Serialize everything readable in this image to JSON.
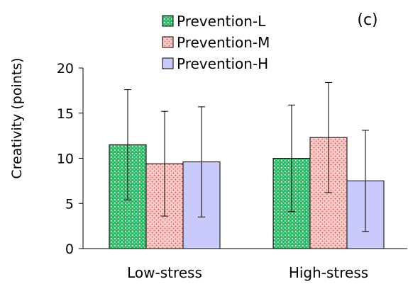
{
  "chart_data": {
    "type": "bar",
    "panel_label": "(c)",
    "title": "",
    "xlabel": "",
    "ylabel": "Creativity (points)",
    "ylim": [
      0,
      20
    ],
    "yticks": [
      0,
      5,
      10,
      15,
      20
    ],
    "grid": false,
    "legend_position": "top-center",
    "categories": [
      "Low-stress",
      "High-stress"
    ],
    "series": [
      {
        "name": "Prevention-L",
        "color": "#28b463",
        "pattern": "dots-green",
        "values": [
          11.5,
          10.0
        ],
        "error": [
          6.1,
          5.9
        ]
      },
      {
        "name": "Prevention-M",
        "color": "#f4a6a6",
        "pattern": "dots-pink",
        "values": [
          9.4,
          12.3
        ],
        "error": [
          5.8,
          6.1
        ]
      },
      {
        "name": "Prevention-H",
        "color": "#c9c9fb",
        "pattern": "solid",
        "values": [
          9.6,
          7.5
        ],
        "error": [
          6.1,
          5.6
        ]
      }
    ]
  }
}
